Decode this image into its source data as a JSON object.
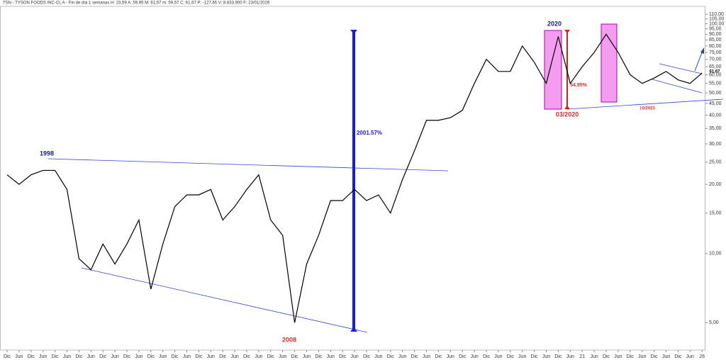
{
  "chart_data": {
    "type": "line",
    "title": "TSN - TYSON FOODS INC-CL A - Fin de día 1 semanas  H: 23,59  A: 59,95  M: 61,57  m: 59,57  C: 61,67  P: -127,65  V: 8.833.900  F: 23/01/2026",
    "log_scale": true,
    "categories": [
      "Dic",
      "Jun",
      "Dic",
      "Jun",
      "Dic",
      "Jun",
      "Dic",
      "Jun",
      "Dic",
      "Jun",
      "Dic",
      "Jun",
      "Dic",
      "Jun",
      "Dic",
      "Jun",
      "Dic",
      "Jun",
      "Dic",
      "Jun",
      "Dic",
      "Jun",
      "Dic",
      "Jun",
      "Dic",
      "Jun",
      "Dic",
      "Jun",
      "Dic",
      "Jun",
      "Dic",
      "Jun",
      "Dic",
      "Jun",
      "Dic",
      "Jun",
      "Dic",
      "Jun",
      "Dic",
      "Jun",
      "Dic",
      "Jun",
      "Dic",
      "Jun",
      "Dic",
      "Jun",
      "Dic",
      "Jun",
      "21",
      "Jun",
      "Dic",
      "Jun",
      "Dic",
      "Jun",
      "Dic",
      "Jun",
      "Dic",
      "Jun",
      "26"
    ],
    "series": [
      {
        "name": "TSN",
        "color": "#000000",
        "values": [
          22,
          20,
          22,
          23,
          23,
          19,
          9.5,
          8.5,
          11,
          9,
          11,
          14,
          7,
          11,
          16,
          18,
          18,
          19,
          14,
          16,
          19,
          22,
          14,
          12,
          5,
          9,
          12,
          17,
          17,
          19,
          17,
          18,
          15,
          21,
          28,
          38,
          38,
          39,
          42,
          55,
          70,
          62,
          62,
          80,
          68,
          55,
          88,
          55,
          65,
          75,
          90,
          75,
          60,
          55,
          58,
          62,
          57,
          55,
          61
        ]
      }
    ],
    "ylim": [
      3.8,
      119
    ],
    "yticks": [
      {
        "value": 5,
        "label": "5,00"
      },
      {
        "value": 10,
        "label": "10,00"
      },
      {
        "value": 15,
        "label": "15,00"
      },
      {
        "value": 20,
        "label": "20,00"
      },
      {
        "value": 25,
        "label": "25,00"
      },
      {
        "value": 30,
        "label": "30,00"
      },
      {
        "value": 35,
        "label": "35,00"
      },
      {
        "value": 40,
        "label": "40,00"
      },
      {
        "value": 45,
        "label": "45,00"
      },
      {
        "value": 50,
        "label": "50,00"
      },
      {
        "value": 55,
        "label": "55,00"
      },
      {
        "value": 60,
        "label": "60,00"
      },
      {
        "value": 65,
        "label": "65,00"
      },
      {
        "value": 70,
        "label": "70,00"
      },
      {
        "value": 75,
        "label": "75,00"
      },
      {
        "value": 80,
        "label": "80,00"
      },
      {
        "value": 85,
        "label": "85,00"
      },
      {
        "value": 90,
        "label": "90,00"
      },
      {
        "value": 95,
        "label": "95,00"
      },
      {
        "value": 100,
        "label": "100,00"
      },
      {
        "value": 105,
        "label": "105,00"
      },
      {
        "value": 110,
        "label": "110,00"
      }
    ],
    "annotations": [
      "1998",
      "2008",
      "2020",
      "03/2020",
      "2001.57%",
      "54.95%",
      "10/2023",
      "61,67"
    ]
  }
}
